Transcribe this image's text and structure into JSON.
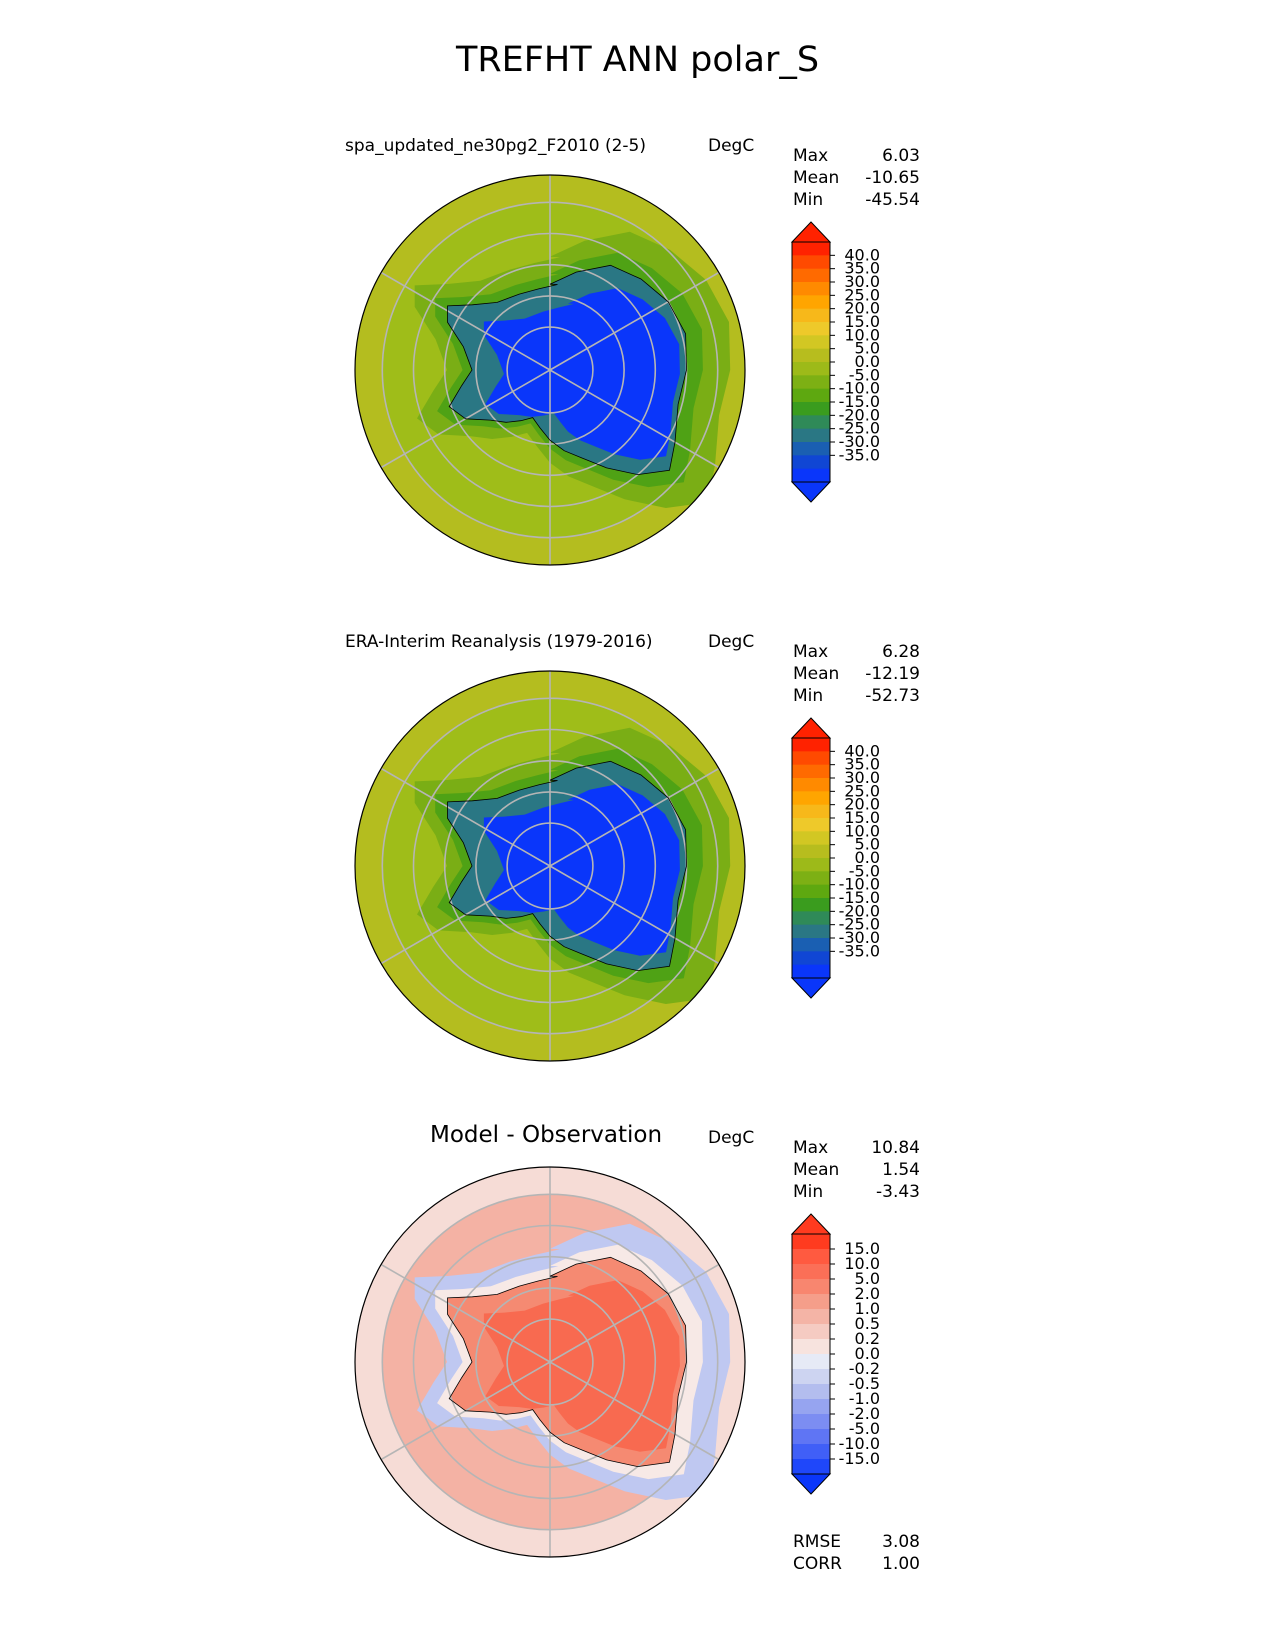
{
  "figure": {
    "title": "TREFHT ANN polar_S"
  },
  "panels": [
    {
      "title": "spa_updated_ne30pg2_F2010 (2-5)",
      "units": "DegC",
      "stats": [
        {
          "label": "Max",
          "value": "6.03"
        },
        {
          "label": "Mean",
          "value": "-10.65"
        },
        {
          "label": "Min",
          "value": "-45.54"
        }
      ],
      "colorbar": {
        "ticks": [
          "40.0",
          "35.0",
          "30.0",
          "25.0",
          "20.0",
          "15.0",
          "10.0",
          "5.0",
          "0.0",
          "-5.0",
          "-10.0",
          "-15.0",
          "-20.0",
          "-25.0",
          "-30.0",
          "-35.0"
        ],
        "colors": [
          "#ff2200",
          "#ff4a00",
          "#ff6a00",
          "#ff8a00",
          "#ffa500",
          "#f7b81a",
          "#eec92a",
          "#d2c723",
          "#b7bd1e",
          "#9dba19",
          "#7db014",
          "#5ea810",
          "#3a9c1e",
          "#2f8a58",
          "#2a7784",
          "#1a5fb2",
          "#1046d4",
          "#0a36fa"
        ],
        "extend_top": "#ff2200",
        "extend_bottom": "#0a36fa"
      },
      "map_colors": {
        "ocean_far": "#b4bd1f",
        "ocean_mid": "#9fbd19",
        "ocean_near": "#7aae15",
        "coast": "#4fa215",
        "interior": "#2f8560",
        "plateau": "#0a36fa",
        "lowland": "#2a7784"
      }
    },
    {
      "title": "ERA-Interim Reanalysis (1979-2016)",
      "units": "DegC",
      "stats": [
        {
          "label": "Max",
          "value": "6.28"
        },
        {
          "label": "Mean",
          "value": "-12.19"
        },
        {
          "label": "Min",
          "value": "-52.73"
        }
      ],
      "colorbar": {
        "ticks": [
          "40.0",
          "35.0",
          "30.0",
          "25.0",
          "20.0",
          "15.0",
          "10.0",
          "5.0",
          "0.0",
          "-5.0",
          "-10.0",
          "-15.0",
          "-20.0",
          "-25.0",
          "-30.0",
          "-35.0"
        ],
        "colors": [
          "#ff2200",
          "#ff4a00",
          "#ff6a00",
          "#ff8a00",
          "#ffa500",
          "#f7b81a",
          "#eec92a",
          "#d2c723",
          "#b7bd1e",
          "#9dba19",
          "#7db014",
          "#5ea810",
          "#3a9c1e",
          "#2f8a58",
          "#2a7784",
          "#1a5fb2",
          "#1046d4",
          "#0a36fa"
        ],
        "extend_top": "#ff2200",
        "extend_bottom": "#0a36fa"
      },
      "map_colors": {
        "ocean_far": "#b4bd1f",
        "ocean_mid": "#9fbd19",
        "ocean_near": "#7aae15",
        "coast": "#4fa215",
        "interior": "#2f8560",
        "plateau": "#0a36fa",
        "lowland": "#2a7784"
      }
    },
    {
      "title": "Model - Observation",
      "units": "DegC",
      "stats": [
        {
          "label": "Max",
          "value": "10.84"
        },
        {
          "label": "Mean",
          "value": "1.54"
        },
        {
          "label": "Min",
          "value": "-3.43"
        }
      ],
      "extra_stats": [
        {
          "label": "RMSE",
          "value": "3.08"
        },
        {
          "label": "CORR",
          "value": "1.00"
        }
      ],
      "colorbar": {
        "ticks": [
          "15.0",
          "10.0",
          "5.0",
          "2.0",
          "1.0",
          "0.5",
          "0.2",
          "0.0",
          "-0.2",
          "-0.5",
          "-1.0",
          "-2.0",
          "-5.0",
          "-10.0",
          "-15.0"
        ],
        "colors": [
          "#ff3b1f",
          "#ff5a40",
          "#fb6f57",
          "#f8866f",
          "#f59e8a",
          "#f4b4a6",
          "#f5cbc2",
          "#f7e3de",
          "#e6eaf6",
          "#cdd4f1",
          "#b3bdee",
          "#96a4f0",
          "#7c8df2",
          "#5f75f4",
          "#405ff7",
          "#1f47fa"
        ],
        "extend_top": "#ff3b1f",
        "extend_bottom": "#0a36fa"
      },
      "map_colors": {
        "ocean_far": "#f6dcd6",
        "ocean_mid": "#f4b2a4",
        "ocean_near": "#bfc8f1",
        "coast": "#f7e9e6",
        "interior": "#f86a50",
        "plateau": "#f86a50",
        "lowland": "#f58a72"
      }
    }
  ]
}
